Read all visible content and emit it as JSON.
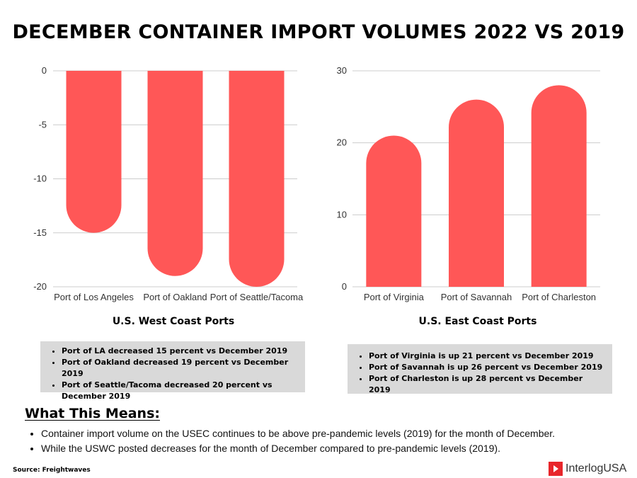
{
  "title": "DECEMBER CONTAINER IMPORT VOLUMES 2022 VS 2019",
  "chart_data": [
    {
      "type": "bar",
      "title": "U.S. West Coast Ports",
      "categories": [
        "Port of Los Angeles",
        "Port of Oakland",
        "Port of Seattle/Tacoma"
      ],
      "values": [
        -15,
        -19,
        -20
      ],
      "yticks": [
        "0",
        "-5",
        "-10",
        "-15",
        "-20"
      ],
      "ylim": [
        -20,
        0
      ],
      "grid": true,
      "color": "#ff5757"
    },
    {
      "type": "bar",
      "title": "U.S. East Coast Ports",
      "categories": [
        "Port of Virginia",
        "Port of Savannah",
        "Port of Charleston"
      ],
      "values": [
        21,
        26,
        28
      ],
      "yticks": [
        "0",
        "10",
        "20",
        "30"
      ],
      "ylim": [
        0,
        30
      ],
      "grid": true,
      "color": "#ff5757"
    }
  ],
  "west_notes": [
    "Port of LA decreased 15 percent vs December 2019",
    "Port of Oakland decreased 19 percent vs December 2019",
    "Port of Seattle/Tacoma decreased 20 percent vs December 2019"
  ],
  "east_notes": [
    "Port of Virginia is up 21 percent vs December 2019",
    "Port of Savannah is up 26 percent vs December 2019",
    "Port of Charleston is up 28 percent vs December 2019"
  ],
  "what_this_means": {
    "heading": "What This Means:",
    "points": [
      "Container import volume on the USEC continues to be above pre-pandemic levels (2019) for the month of December.",
      "While the USWC posted decreases for the month of December compared to pre-pandemic levels (2019)."
    ]
  },
  "source": "Source: Freightwaves",
  "logo": {
    "text": "InterlogUSA",
    "color": "#e8262b"
  }
}
